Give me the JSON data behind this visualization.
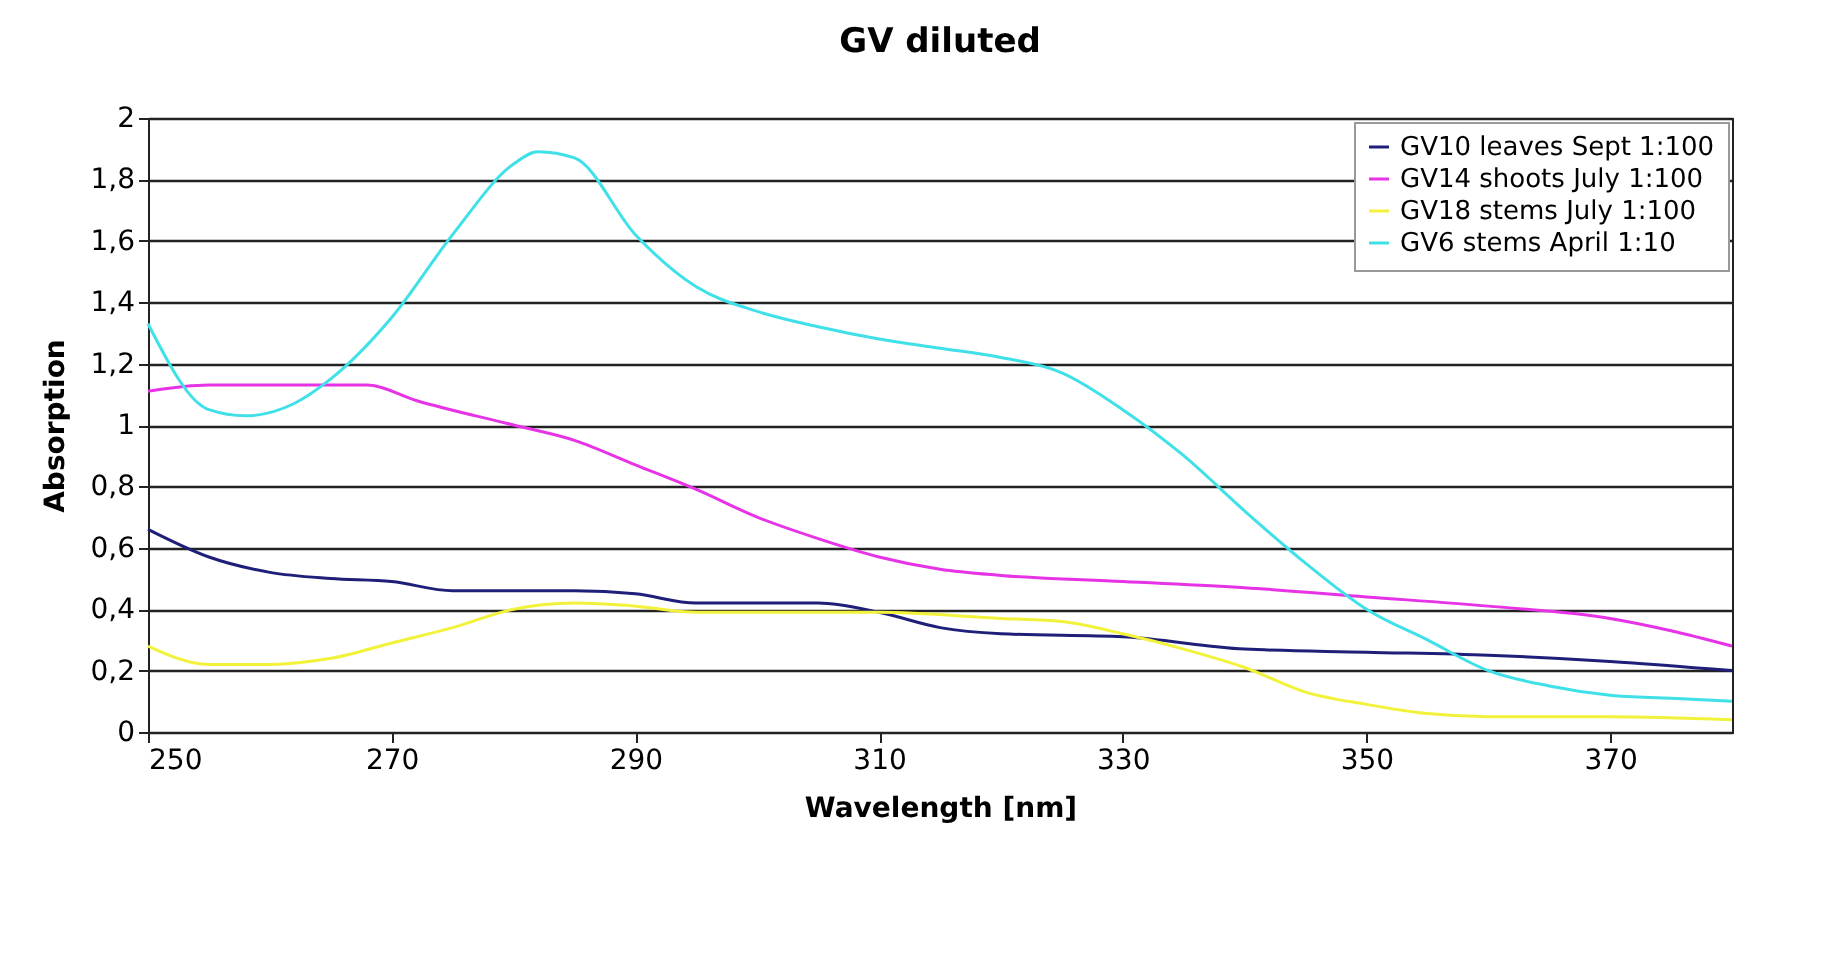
{
  "chart_data": {
    "type": "line",
    "title": "GV diluted",
    "xlabel": "Wavelength [nm]",
    "ylabel": "Absorption",
    "xlim": [
      250,
      380
    ],
    "xticks": [
      250,
      270,
      290,
      310,
      330,
      350,
      370
    ],
    "ylim": [
      0,
      2
    ],
    "yticks": [
      0,
      {
        "value": 0.2,
        "label": "0,2"
      },
      {
        "value": 0.4,
        "label": "0,4"
      },
      {
        "value": 0.6,
        "label": "0,6"
      },
      {
        "value": 0.8,
        "label": "0,8"
      },
      1,
      {
        "value": 1.2,
        "label": "1,2"
      },
      {
        "value": 1.4,
        "label": "1,4"
      },
      {
        "value": 1.6,
        "label": "1,6"
      },
      {
        "value": 1.8,
        "label": "1,8"
      },
      2
    ],
    "grid": "y",
    "legend": "top right",
    "series": [
      {
        "name": "GV10 leaves Sept 1:100",
        "color": "#1f1f7a",
        "x": [
          250,
          255,
          260,
          265,
          270,
          275,
          280,
          285,
          290,
          295,
          300,
          305,
          310,
          315,
          320,
          330,
          340,
          350,
          360,
          370,
          380
        ],
        "values": [
          0.66,
          0.57,
          0.52,
          0.5,
          0.49,
          0.46,
          0.46,
          0.46,
          0.45,
          0.42,
          0.42,
          0.42,
          0.39,
          0.34,
          0.32,
          0.31,
          0.27,
          0.26,
          0.25,
          0.23,
          0.2
        ]
      },
      {
        "name": "GV14 shoots July 1:100",
        "color": "#e633e6",
        "x": [
          250,
          255,
          260,
          265,
          268,
          272,
          280,
          285,
          290,
          295,
          300,
          305,
          310,
          315,
          320,
          330,
          340,
          350,
          360,
          370,
          375,
          380
        ],
        "values": [
          1.11,
          1.13,
          1.13,
          1.13,
          1.13,
          1.08,
          1.0,
          0.95,
          0.87,
          0.79,
          0.7,
          0.63,
          0.57,
          0.53,
          0.51,
          0.49,
          0.47,
          0.44,
          0.41,
          0.37,
          0.33,
          0.28
        ]
      },
      {
        "name": "GV18 stems July 1:100",
        "color": "#f2f23a",
        "x": [
          250,
          255,
          260,
          265,
          270,
          275,
          280,
          285,
          290,
          295,
          300,
          310,
          320,
          325,
          330,
          335,
          340,
          345,
          350,
          355,
          360,
          370,
          380
        ],
        "values": [
          0.28,
          0.22,
          0.22,
          0.24,
          0.29,
          0.34,
          0.4,
          0.42,
          0.41,
          0.39,
          0.39,
          0.39,
          0.37,
          0.36,
          0.32,
          0.27,
          0.21,
          0.13,
          0.09,
          0.06,
          0.05,
          0.05,
          0.04
        ]
      },
      {
        "name": "GV6 stems April 1:10",
        "color": "#40e0e8",
        "x": [
          250,
          255,
          258,
          262,
          265,
          270,
          275,
          280,
          282,
          285,
          290,
          295,
          300,
          305,
          310,
          315,
          320,
          325,
          330,
          335,
          340,
          345,
          350,
          355,
          360,
          365,
          370,
          375,
          380
        ],
        "values": [
          1.33,
          1.05,
          1.03,
          1.07,
          1.15,
          1.35,
          1.62,
          1.85,
          1.89,
          1.87,
          1.62,
          1.45,
          1.37,
          1.32,
          1.28,
          1.25,
          1.22,
          1.17,
          1.05,
          0.9,
          0.72,
          0.55,
          0.4,
          0.3,
          0.2,
          0.15,
          0.12,
          0.11,
          0.1
        ]
      }
    ]
  }
}
